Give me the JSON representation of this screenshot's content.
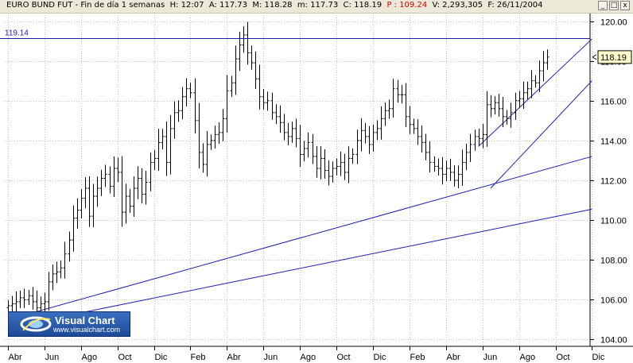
{
  "window": {
    "title_prefix": "EURO BUND FUT - Fin de día 1 semanas",
    "h_time": "H: 12:07",
    "a_open": "A: 117.73",
    "m_high": "M: 118.28",
    "m_low": "m: 117.73",
    "c_close": "C: 118.19",
    "p_change": "P : 109.24",
    "v_volume": "V: 2,293,305",
    "f_date": "F: 26/11/2004",
    "btn_minimize": "_",
    "btn_maximize": "□",
    "btn_close": "x"
  },
  "logo": {
    "title": "Visual Chart",
    "url": "www.visualchart.com"
  },
  "chart_data": {
    "type": "ohlc",
    "ylim": [
      103.7,
      120.3
    ],
    "y_ticks": [
      104,
      106,
      108,
      110,
      112,
      114,
      116,
      118,
      120
    ],
    "y_tick_labels": [
      "104.00",
      "106.00",
      "108.00",
      "110.00",
      "112.00",
      "114.00",
      "116.00",
      "118.00",
      "120.00"
    ],
    "x_tick_labels": [
      "Abr",
      "Jun",
      "Ago",
      "Oct",
      "Dic",
      "Feb",
      "Abr",
      "Jun",
      "Ago",
      "Oct",
      "Dic",
      "Feb",
      "Abr",
      "Jun",
      "Ago",
      "Oct",
      "Dic"
    ],
    "x_tick_bars": [
      0,
      9,
      18,
      27,
      36,
      45,
      54,
      63,
      72,
      81,
      90,
      99,
      108,
      117,
      126,
      135,
      144
    ],
    "x_first": "2003-04",
    "last_price_label": "118.19",
    "horizontal_line": {
      "label": "119.14",
      "value": 119.14
    },
    "trend_lines": [
      {
        "x1": 0,
        "y1": 105,
        "x2": 144,
        "y2": 113.2
      },
      {
        "x1": 0,
        "y1": 104.6,
        "x2": 144,
        "y2": 110.55
      },
      {
        "x1": 116,
        "y1": 113.7,
        "x2": 144,
        "y2": 119.1
      },
      {
        "x1": 119,
        "y1": 111.6,
        "x2": 144,
        "y2": 117
      }
    ],
    "series_close": [
      105.7,
      105.8,
      105.9,
      106.1,
      106,
      106.2,
      105.9,
      105.6,
      105.8,
      105.9,
      106.9,
      107.3,
      107.4,
      107.6,
      108.3,
      109,
      110.1,
      110.5,
      111.1,
      111.6,
      110.2,
      111.2,
      111.6,
      112.1,
      112.3,
      111.7,
      112.6,
      112.4,
      110.4,
      111.2,
      110.7,
      111.6,
      112.1,
      111.3,
      111.9,
      112.9,
      113.1,
      113.9,
      114.2,
      112.9,
      114.6,
      115.4,
      115.5,
      116.2,
      116.6,
      116.4,
      115,
      113.4,
      112.8,
      113.8,
      114,
      114.3,
      114.4,
      115.1,
      116.5,
      116.9,
      118.1,
      118.8,
      119.3,
      118.4,
      117.9,
      117.1,
      116.2,
      115.9,
      116,
      115.4,
      115.2,
      114.9,
      114.4,
      114.2,
      114.6,
      114.1,
      113.3,
      113.6,
      113.9,
      113.2,
      112.6,
      113.1,
      112.5,
      112.2,
      112.6,
      112.7,
      112.9,
      112.4,
      113.1,
      113.3,
      114,
      114.5,
      114.2,
      113.8,
      114.4,
      114.6,
      115.1,
      115.5,
      115.6,
      116.6,
      116.3,
      116.3,
      115.2,
      114.8,
      114.6,
      114.2,
      113.9,
      113.4,
      112.9,
      112.7,
      112.6,
      112.3,
      112.6,
      112.4,
      112,
      112.3,
      112.9,
      113.4,
      113.8,
      114.2,
      114.1,
      114.3,
      115.8,
      115.6,
      115.9,
      115.6,
      115.2,
      115.1,
      115.4,
      116,
      116.1,
      116.4,
      116.6,
      117,
      116.9,
      117.5,
      117.9,
      118.19
    ]
  }
}
